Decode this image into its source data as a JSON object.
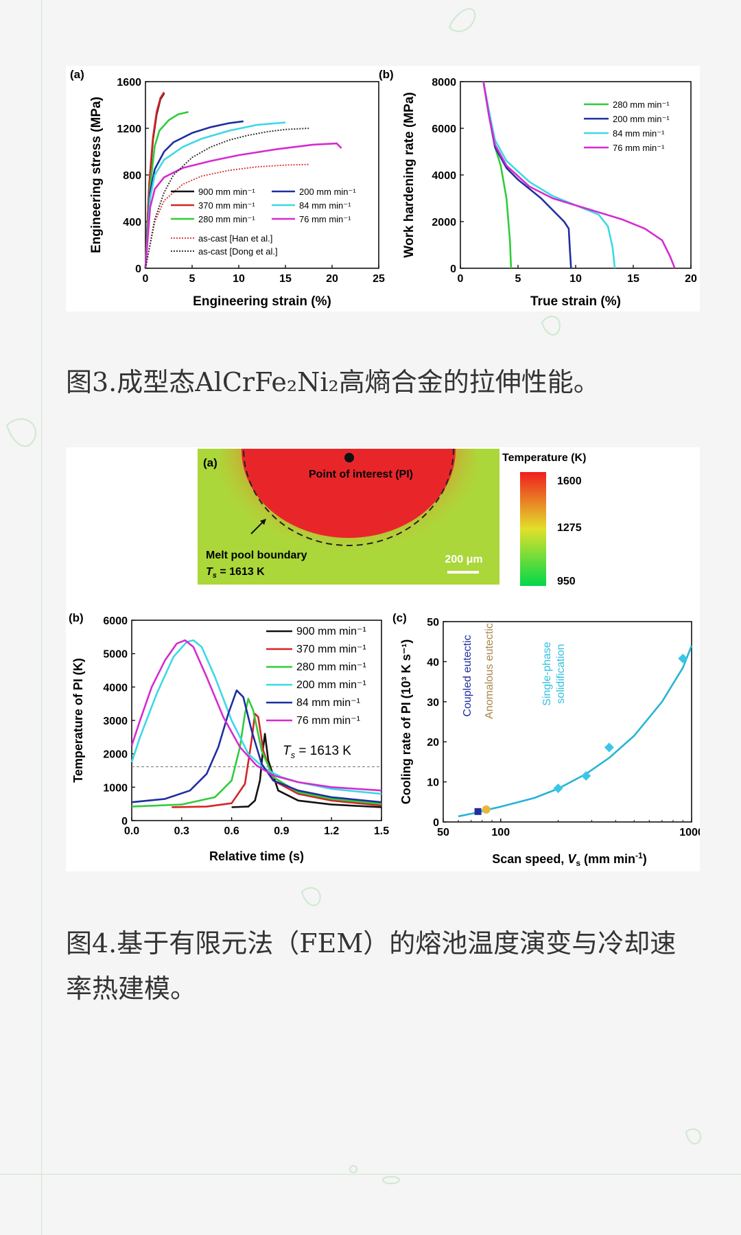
{
  "fig3": {
    "a": {
      "label": "(a)",
      "xlabel": "Engineering strain (%)",
      "ylabel": "Engineering stress (MPa)",
      "xticks": [
        "0",
        "5",
        "10",
        "15",
        "20",
        "25"
      ],
      "yticks": [
        "0",
        "400",
        "800",
        "1200",
        "1600"
      ],
      "legend": [
        "900 mm min⁻¹",
        "370 mm min⁻¹",
        "280 mm min⁻¹",
        "200 mm min⁻¹",
        "84 mm min⁻¹",
        "76 mm min⁻¹",
        "as-cast [Han et al.]",
        "as-cast [Dong et al.]"
      ]
    },
    "b": {
      "label": "(b)",
      "xlabel": "True strain (%)",
      "ylabel": "Work hardening rate (MPa)",
      "xticks": [
        "0",
        "5",
        "10",
        "15",
        "20"
      ],
      "yticks": [
        "0",
        "2000",
        "4000",
        "6000",
        "8000"
      ],
      "legend": [
        "280 mm min⁻¹",
        "200 mm min⁻¹",
        "84 mm min⁻¹",
        "76 mm min⁻¹"
      ]
    }
  },
  "caption3": "图3.成型态AlCrFe₂Ni₂高熵合金的拉伸性能。",
  "fig4": {
    "a": {
      "label": "(a)",
      "poi": "Point of interest (PI)",
      "boundary": "Melt pool boundary",
      "ts_prefix": "T",
      "ts_sub": "s",
      "ts_value": " = 1613 K",
      "scale": "200 μm",
      "cb_title": "Temperature (K)",
      "cb_ticks": [
        "1600",
        "1275",
        "950"
      ]
    },
    "b": {
      "label": "(b)",
      "xlabel": "Relative time (s)",
      "ylabel": "Temperature of PI (K)",
      "xticks": [
        "0.0",
        "0.3",
        "0.6",
        "0.9",
        "1.2",
        "1.5"
      ],
      "yticks": [
        "0",
        "1000",
        "2000",
        "3000",
        "4000",
        "5000",
        "6000"
      ],
      "legend": [
        "900 mm min⁻¹",
        "370 mm min⁻¹",
        "280 mm min⁻¹",
        "200 mm min⁻¹",
        "84 mm min⁻¹",
        "76 mm min⁻¹"
      ],
      "ts_prefix": "T",
      "ts_sub": "s",
      "ts_value": " = 1613 K"
    },
    "c": {
      "label": "(c)",
      "xlabel_prefix": "Scan speed, ",
      "xlabel_var": "V",
      "xlabel_sub": "s",
      "xlabel_suffix": " (mm min",
      "xlabel_sup": "-1",
      "xlabel_close": ")",
      "ylabel": "Cooling rate of PI (10³ K s⁻¹)",
      "xticks": [
        "50",
        "100",
        "1000"
      ],
      "yticks": [
        "0",
        "10",
        "20",
        "30",
        "40",
        "50"
      ],
      "region1": "Coupled eutectic",
      "region2": "Anomalous eutectic",
      "region3_line1": "Single-phase",
      "region3_line2": "solidification"
    }
  },
  "caption4_line1": "图4.基于有限元法（FEM）的熔池温度演变与冷却速",
  "caption4_line2": "率热建模。",
  "colors": {
    "900": "#111111",
    "370": "#d42424",
    "280": "#2fcc3a",
    "200": "#1e2ea0",
    "84": "#3cd8e6",
    "76": "#d62ad0",
    "han": "#d84040",
    "dong": "#333333",
    "fit": "#26b4d6"
  },
  "chart_data": [
    {
      "id": "fig3a",
      "type": "line",
      "title": "",
      "xlabel": "Engineering strain (%)",
      "ylabel": "Engineering stress (MPa)",
      "xlim": [
        0,
        25
      ],
      "ylim": [
        0,
        1600
      ],
      "legend_position": "bottom-right",
      "series": [
        {
          "name": "900 mm min⁻¹",
          "color": "#111111",
          "x": [
            0,
            0.4,
            0.8,
            1.2,
            1.6,
            2.0
          ],
          "y": [
            0,
            700,
            1100,
            1320,
            1450,
            1500
          ]
        },
        {
          "name": "370 mm min⁻¹",
          "color": "#d42424",
          "x": [
            0,
            0.4,
            0.8,
            1.2,
            1.6,
            2.0
          ],
          "y": [
            0,
            720,
            1120,
            1340,
            1460,
            1510
          ]
        },
        {
          "name": "280 mm min⁻¹",
          "color": "#2fcc3a",
          "x": [
            0,
            0.5,
            1,
            1.5,
            2.5,
            3.5,
            4.6
          ],
          "y": [
            0,
            700,
            1050,
            1180,
            1270,
            1320,
            1340
          ]
        },
        {
          "name": "200 mm min⁻¹",
          "color": "#1e2ea0",
          "x": [
            0,
            0.5,
            1,
            2,
            3,
            5,
            7,
            9,
            10.5
          ],
          "y": [
            0,
            650,
            850,
            1000,
            1080,
            1160,
            1210,
            1245,
            1260
          ]
        },
        {
          "name": "84 mm min⁻¹",
          "color": "#3cd8e6",
          "x": [
            0,
            0.5,
            1,
            2,
            4,
            6,
            9,
            12,
            15
          ],
          "y": [
            0,
            600,
            800,
            930,
            1040,
            1110,
            1180,
            1230,
            1250
          ]
        },
        {
          "name": "76 mm min⁻¹",
          "color": "#d62ad0",
          "x": [
            0,
            0.5,
            1,
            2,
            4,
            7,
            10,
            14,
            18,
            20.5,
            21
          ],
          "y": [
            0,
            520,
            680,
            780,
            860,
            920,
            970,
            1020,
            1060,
            1070,
            1030
          ]
        },
        {
          "name": "as-cast [Han et al.]",
          "color": "#d84040",
          "dashed": true,
          "x": [
            0,
            1,
            2,
            4,
            6,
            9,
            12,
            15,
            17.5
          ],
          "y": [
            0,
            400,
            580,
            720,
            790,
            840,
            870,
            885,
            890
          ]
        },
        {
          "name": "as-cast [Dong et al.]",
          "color": "#333333",
          "dashed": true,
          "x": [
            0,
            1,
            2,
            3,
            5,
            7,
            9,
            11,
            13,
            15,
            17.5
          ],
          "y": [
            0,
            420,
            650,
            800,
            950,
            1040,
            1100,
            1140,
            1170,
            1190,
            1200
          ]
        }
      ]
    },
    {
      "id": "fig3b",
      "type": "line",
      "title": "",
      "xlabel": "True strain (%)",
      "ylabel": "Work hardening rate (MPa)",
      "xlim": [
        0,
        20
      ],
      "ylim": [
        0,
        8000
      ],
      "legend_position": "top-right",
      "series": [
        {
          "name": "280 mm min⁻¹",
          "color": "#2fcc3a",
          "x": [
            2,
            2.5,
            3,
            3.5,
            4,
            4.3,
            4.4
          ],
          "y": [
            8000,
            6500,
            5200,
            4400,
            3000,
            1200,
            0
          ]
        },
        {
          "name": "200 mm min⁻¹",
          "color": "#1e2ea0",
          "x": [
            2,
            2.5,
            3,
            4,
            5,
            6,
            7,
            8,
            9,
            9.4,
            9.5,
            9.6
          ],
          "y": [
            8000,
            6500,
            5200,
            4300,
            3800,
            3400,
            3000,
            2500,
            2000,
            1700,
            800,
            0
          ]
        },
        {
          "name": "84 mm min⁻¹",
          "color": "#3cd8e6",
          "x": [
            2,
            2.5,
            3,
            4,
            6,
            8,
            10,
            12,
            12.8,
            13.2,
            13.4
          ],
          "y": [
            8000,
            6700,
            5500,
            4600,
            3700,
            3100,
            2700,
            2300,
            1800,
            900,
            0
          ]
        },
        {
          "name": "76 mm min⁻¹",
          "color": "#d62ad0",
          "x": [
            2,
            2.5,
            3,
            4,
            6,
            8,
            10,
            12,
            14,
            16,
            17.5,
            18.2,
            18.6
          ],
          "y": [
            8000,
            6500,
            5300,
            4400,
            3500,
            3000,
            2700,
            2400,
            2100,
            1700,
            1200,
            500,
            0
          ]
        }
      ]
    },
    {
      "id": "fig4b",
      "type": "line",
      "title": "",
      "xlabel": "Relative time (s)",
      "ylabel": "Temperature of PI (K)",
      "xlim": [
        0,
        1.5
      ],
      "ylim": [
        0,
        6000
      ],
      "legend_position": "top-right",
      "reference_line": {
        "y": 1613,
        "label": "Ts = 1613 K"
      },
      "series": [
        {
          "name": "900 mm min⁻¹",
          "color": "#111111",
          "x": [
            0.6,
            0.7,
            0.74,
            0.77,
            0.79,
            0.8,
            0.82,
            0.88,
            1.0,
            1.2,
            1.5
          ],
          "y": [
            400,
            420,
            600,
            1200,
            2200,
            2600,
            1800,
            900,
            600,
            480,
            400
          ]
        },
        {
          "name": "370 mm min⁻¹",
          "color": "#d42424",
          "x": [
            0.24,
            0.45,
            0.6,
            0.68,
            0.72,
            0.74,
            0.76,
            0.79,
            0.85,
            1.0,
            1.2,
            1.5
          ],
          "y": [
            400,
            420,
            520,
            1100,
            2400,
            3200,
            3100,
            2100,
            1200,
            800,
            600,
            450
          ]
        },
        {
          "name": "280 mm min⁻¹",
          "color": "#2fcc3a",
          "x": [
            0,
            0.3,
            0.5,
            0.6,
            0.65,
            0.68,
            0.7,
            0.73,
            0.78,
            0.85,
            1.0,
            1.2,
            1.5
          ],
          "y": [
            420,
            480,
            700,
            1200,
            2200,
            3200,
            3650,
            3300,
            2100,
            1300,
            850,
            650,
            500
          ]
        },
        {
          "name": "200 mm min⁻¹",
          "color": "#3cd8e6",
          "x": [
            0,
            0.05,
            0.15,
            0.25,
            0.33,
            0.37,
            0.42,
            0.5,
            0.6,
            0.7,
            0.8,
            0.9,
            1.0,
            1.2,
            1.5
          ],
          "y": [
            1750,
            2500,
            3800,
            4900,
            5350,
            5400,
            5200,
            4300,
            3000,
            2000,
            1550,
            1300,
            1150,
            950,
            800
          ]
        },
        {
          "name": "84 mm min⁻¹",
          "color": "#1e2ea0",
          "x": [
            0,
            0.2,
            0.35,
            0.45,
            0.52,
            0.58,
            0.63,
            0.67,
            0.72,
            0.78,
            0.85,
            1.0,
            1.2,
            1.5
          ],
          "y": [
            550,
            650,
            900,
            1400,
            2200,
            3200,
            3900,
            3700,
            2700,
            1700,
            1200,
            900,
            700,
            550
          ]
        },
        {
          "name": "76 mm min⁻¹",
          "color": "#d62ad0",
          "x": [
            0,
            0.05,
            0.12,
            0.2,
            0.27,
            0.32,
            0.37,
            0.45,
            0.55,
            0.65,
            0.75,
            0.85,
            1.0,
            1.2,
            1.5
          ],
          "y": [
            2250,
            3000,
            4000,
            4800,
            5300,
            5400,
            5200,
            4300,
            3100,
            2200,
            1650,
            1350,
            1150,
            1000,
            900
          ]
        }
      ]
    },
    {
      "id": "fig4c",
      "type": "scatter",
      "title": "",
      "xlabel": "Scan speed, Vs (mm min⁻¹)",
      "ylabel": "Cooling rate of PI (10³ K s⁻¹)",
      "xscale": "log",
      "xlim": [
        50,
        1000
      ],
      "ylim": [
        0,
        50
      ],
      "points": [
        {
          "x": 76,
          "y": 2.6,
          "color": "#1e2ea0",
          "marker": "square"
        },
        {
          "x": 84,
          "y": 3.1,
          "color": "#e8b83a",
          "marker": "circle"
        },
        {
          "x": 200,
          "y": 8.4,
          "color": "#3cc6e6",
          "marker": "diamond"
        },
        {
          "x": 280,
          "y": 11.5,
          "color": "#3cc6e6",
          "marker": "diamond"
        },
        {
          "x": 370,
          "y": 18.6,
          "color": "#3cc6e6",
          "marker": "diamond"
        },
        {
          "x": 900,
          "y": 40.8,
          "color": "#3cc6e6",
          "marker": "diamond"
        }
      ],
      "fit": {
        "color": "#26b4d6",
        "x": [
          60,
          76,
          84,
          100,
          150,
          200,
          280,
          370,
          500,
          700,
          900,
          1000
        ],
        "y": [
          1.4,
          2.4,
          3,
          3.8,
          6,
          8.3,
          12,
          16,
          21.5,
          30,
          38.5,
          44
        ]
      }
    }
  ]
}
